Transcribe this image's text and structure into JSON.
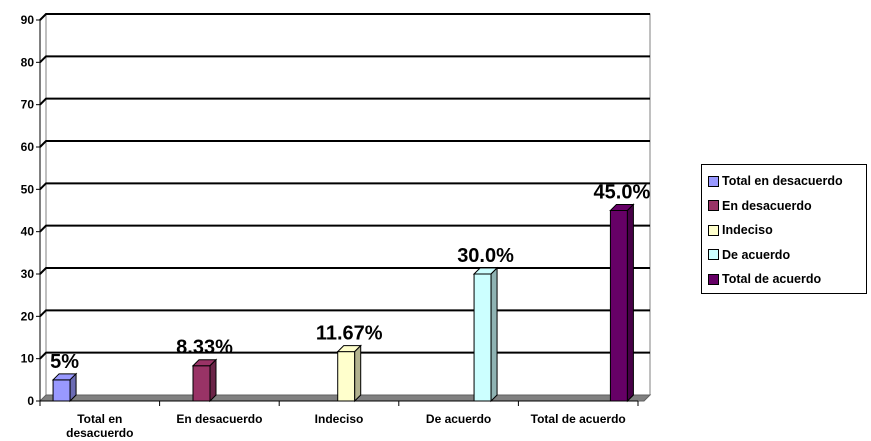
{
  "chart_data": {
    "type": "bar",
    "title": "",
    "xlabel": "",
    "ylabel": "",
    "ylim": [
      0,
      90
    ],
    "yticks": [
      0,
      10,
      20,
      30,
      40,
      50,
      60,
      70,
      80,
      90
    ],
    "grid": true,
    "legend_position": "right",
    "categories": [
      "Total en desacuerdo",
      "En desacuerdo",
      "Indeciso",
      "De acuerdo",
      "Total de acuerdo"
    ],
    "values": [
      5,
      8.33,
      11.67,
      30.0,
      45.0
    ],
    "data_labels": [
      "5%",
      "8.33%",
      "11.67%",
      "30.0%",
      "45.0%"
    ],
    "colors": [
      "#9999FF",
      "#993366",
      "#FFFFCC",
      "#CCFFFF",
      "#660066"
    ],
    "legend": [
      "Total en desacuerdo",
      "En desacuerdo",
      "Indeciso",
      "De acuerdo",
      "Total de acuerdo"
    ]
  }
}
